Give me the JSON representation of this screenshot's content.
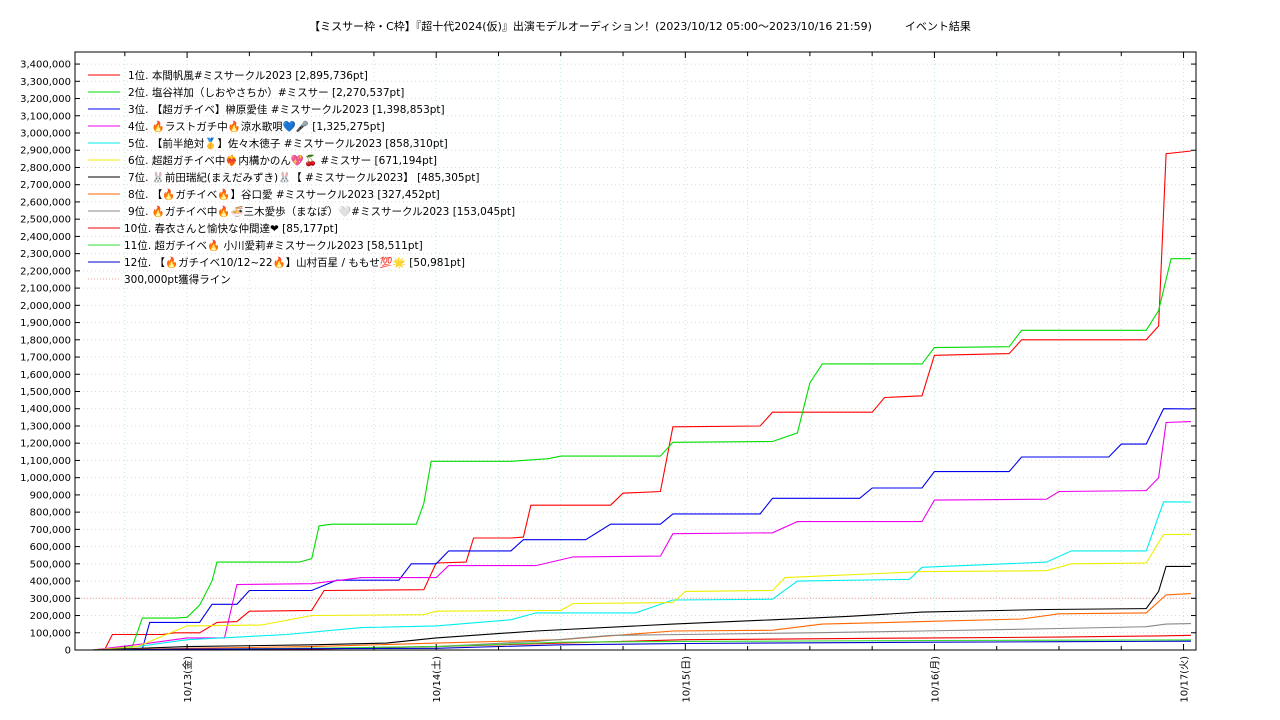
{
  "chart_data": {
    "type": "line",
    "title": "【ミスサー枠・C枠】『超十代2024(仮)』出演モデルオーディション！(2023/10/12 05:00～2023/10/16 21:59)　　　イベント結果",
    "xlabel": "",
    "ylabel": "",
    "x_ticks": [
      "10/13(金)",
      "10/14(土)",
      "10/15(日)",
      "10/16(月)",
      "10/17(火)"
    ],
    "y_ticks": [
      "0",
      "100,000",
      "200,000",
      "300,000",
      "400,000",
      "500,000",
      "600,000",
      "700,000",
      "800,000",
      "900,000",
      "1,000,000",
      "1,100,000",
      "1,200,000",
      "1,300,000",
      "1,400,000",
      "1,500,000",
      "1,600,000",
      "1,700,000",
      "1,800,000",
      "1,900,000",
      "2,000,000",
      "2,100,000",
      "2,200,000",
      "2,300,000",
      "2,400,000",
      "2,500,000",
      "2,600,000",
      "2,700,000",
      "2,800,000",
      "2,900,000",
      "3,000,000",
      "3,100,000",
      "3,200,000",
      "3,300,000",
      "3,400,000"
    ],
    "x_range_days": [
      -0.45,
      4.05
    ],
    "ylim": [
      0,
      3470000
    ],
    "grid": true,
    "legend_position": "top-left",
    "series": [
      {
        "name": "1位. 本間帆風#ミスサークル2023 [2,895,736pt]",
        "color": "#ff0000",
        "points": [
          [
            -0.38,
            0
          ],
          [
            -0.33,
            5000
          ],
          [
            -0.3,
            90000
          ],
          [
            -0.1,
            90000
          ],
          [
            -0.05,
            100000
          ],
          [
            0.05,
            100000
          ],
          [
            0.12,
            160000
          ],
          [
            0.2,
            165000
          ],
          [
            0.25,
            225000
          ],
          [
            0.5,
            230000
          ],
          [
            0.55,
            345000
          ],
          [
            0.95,
            350000
          ],
          [
            1.0,
            505000
          ],
          [
            1.12,
            510000
          ],
          [
            1.15,
            650000
          ],
          [
            1.3,
            650000
          ],
          [
            1.35,
            655000
          ],
          [
            1.38,
            840000
          ],
          [
            1.7,
            840000
          ],
          [
            1.75,
            910000
          ],
          [
            1.9,
            920000
          ],
          [
            1.95,
            1295000
          ],
          [
            2.3,
            1300000
          ],
          [
            2.35,
            1380000
          ],
          [
            2.75,
            1380000
          ],
          [
            2.8,
            1465000
          ],
          [
            2.95,
            1475000
          ],
          [
            3.0,
            1710000
          ],
          [
            3.3,
            1720000
          ],
          [
            3.35,
            1800000
          ],
          [
            3.85,
            1800000
          ],
          [
            3.9,
            1880000
          ],
          [
            3.93,
            2880000
          ],
          [
            4.03,
            2895736
          ]
        ]
      },
      {
        "name": "2位. 塩谷祥加（しおやさちか）#ミスサー [2,270,537pt]",
        "color": "#00dd00",
        "points": [
          [
            -0.38,
            0
          ],
          [
            -0.22,
            20000
          ],
          [
            -0.18,
            185000
          ],
          [
            -0.05,
            185000
          ],
          [
            0.0,
            190000
          ],
          [
            0.05,
            260000
          ],
          [
            0.1,
            400000
          ],
          [
            0.12,
            510000
          ],
          [
            0.45,
            510000
          ],
          [
            0.5,
            530000
          ],
          [
            0.53,
            720000
          ],
          [
            0.58,
            730000
          ],
          [
            0.92,
            730000
          ],
          [
            0.95,
            850000
          ],
          [
            0.98,
            1095000
          ],
          [
            1.3,
            1095000
          ],
          [
            1.45,
            1110000
          ],
          [
            1.5,
            1125000
          ],
          [
            1.9,
            1125000
          ],
          [
            1.95,
            1205000
          ],
          [
            2.35,
            1210000
          ],
          [
            2.45,
            1260000
          ],
          [
            2.5,
            1550000
          ],
          [
            2.55,
            1660000
          ],
          [
            2.95,
            1660000
          ],
          [
            3.0,
            1755000
          ],
          [
            3.3,
            1760000
          ],
          [
            3.35,
            1855000
          ],
          [
            3.85,
            1855000
          ],
          [
            3.9,
            1970000
          ],
          [
            3.95,
            2270537
          ],
          [
            4.03,
            2270537
          ]
        ]
      },
      {
        "name": "3位. 【超ガチイベ】榊原愛佳 #ミスサークル2023 [1,398,853pt]",
        "color": "#0000ee",
        "points": [
          [
            -0.38,
            0
          ],
          [
            -0.18,
            5000
          ],
          [
            -0.15,
            160000
          ],
          [
            0.05,
            160000
          ],
          [
            0.1,
            265000
          ],
          [
            0.2,
            265000
          ],
          [
            0.25,
            345000
          ],
          [
            0.5,
            345000
          ],
          [
            0.6,
            405000
          ],
          [
            0.85,
            405000
          ],
          [
            0.9,
            500000
          ],
          [
            1.0,
            500000
          ],
          [
            1.05,
            575000
          ],
          [
            1.3,
            575000
          ],
          [
            1.35,
            640000
          ],
          [
            1.6,
            640000
          ],
          [
            1.7,
            730000
          ],
          [
            1.9,
            730000
          ],
          [
            1.95,
            790000
          ],
          [
            2.3,
            790000
          ],
          [
            2.35,
            880000
          ],
          [
            2.7,
            880000
          ],
          [
            2.75,
            940000
          ],
          [
            2.95,
            940000
          ],
          [
            3.0,
            1035000
          ],
          [
            3.3,
            1035000
          ],
          [
            3.35,
            1120000
          ],
          [
            3.7,
            1120000
          ],
          [
            3.75,
            1195000
          ],
          [
            3.85,
            1195000
          ],
          [
            3.92,
            1400000
          ],
          [
            4.03,
            1398853
          ]
        ]
      },
      {
        "name": "4位. 🔥ラストガチ中🔥涼水歌唄💙🎤 [1,325,275pt]",
        "color": "#ee00ee",
        "points": [
          [
            -0.38,
            0
          ],
          [
            -0.15,
            40000
          ],
          [
            0.0,
            70000
          ],
          [
            0.15,
            70000
          ],
          [
            0.2,
            380000
          ],
          [
            0.5,
            385000
          ],
          [
            0.7,
            420000
          ],
          [
            1.0,
            420000
          ],
          [
            1.05,
            490000
          ],
          [
            1.4,
            490000
          ],
          [
            1.55,
            540000
          ],
          [
            1.9,
            545000
          ],
          [
            1.95,
            675000
          ],
          [
            2.35,
            680000
          ],
          [
            2.45,
            745000
          ],
          [
            2.95,
            745000
          ],
          [
            3.0,
            870000
          ],
          [
            3.45,
            875000
          ],
          [
            3.5,
            920000
          ],
          [
            3.85,
            925000
          ],
          [
            3.9,
            1000000
          ],
          [
            3.93,
            1320000
          ],
          [
            4.03,
            1325275
          ]
        ]
      },
      {
        "name": "5位. 【前半絶対🥇】佐々木徳子 #ミスサークル2023 [858,310pt]",
        "color": "#00eeee",
        "points": [
          [
            -0.38,
            0
          ],
          [
            -0.25,
            10000
          ],
          [
            0.0,
            60000
          ],
          [
            0.4,
            90000
          ],
          [
            0.7,
            130000
          ],
          [
            1.0,
            140000
          ],
          [
            1.3,
            175000
          ],
          [
            1.4,
            215000
          ],
          [
            1.8,
            215000
          ],
          [
            1.95,
            290000
          ],
          [
            2.35,
            295000
          ],
          [
            2.45,
            400000
          ],
          [
            2.9,
            410000
          ],
          [
            2.95,
            480000
          ],
          [
            3.45,
            510000
          ],
          [
            3.55,
            575000
          ],
          [
            3.85,
            575000
          ],
          [
            3.92,
            860000
          ],
          [
            4.03,
            858310
          ]
        ]
      },
      {
        "name": "6位. 超超ガチイベ中❤️‍🔥内構かのん💖🍒 #ミスサー [671,194pt]",
        "color": "#eeee00",
        "points": [
          [
            -0.38,
            0
          ],
          [
            -0.2,
            20000
          ],
          [
            0.0,
            140000
          ],
          [
            0.3,
            145000
          ],
          [
            0.5,
            200000
          ],
          [
            0.95,
            205000
          ],
          [
            1.0,
            225000
          ],
          [
            1.5,
            230000
          ],
          [
            1.55,
            270000
          ],
          [
            1.95,
            275000
          ],
          [
            2.0,
            340000
          ],
          [
            2.35,
            345000
          ],
          [
            2.4,
            420000
          ],
          [
            2.95,
            455000
          ],
          [
            3.45,
            460000
          ],
          [
            3.55,
            500000
          ],
          [
            3.85,
            505000
          ],
          [
            3.92,
            670000
          ],
          [
            4.03,
            671194
          ]
        ]
      },
      {
        "name": "7位. 🐰前田瑞紀(まえだみずき)🐰【 #ミスサークル2023】 [485,305pt]",
        "color": "#000000",
        "points": [
          [
            -0.38,
            0
          ],
          [
            0.0,
            20000
          ],
          [
            0.5,
            30000
          ],
          [
            0.8,
            40000
          ],
          [
            1.0,
            70000
          ],
          [
            1.4,
            110000
          ],
          [
            1.95,
            150000
          ],
          [
            2.35,
            175000
          ],
          [
            2.65,
            195000
          ],
          [
            2.95,
            220000
          ],
          [
            3.45,
            235000
          ],
          [
            3.85,
            240000
          ],
          [
            3.9,
            340000
          ],
          [
            3.93,
            485000
          ],
          [
            4.03,
            485305
          ]
        ]
      },
      {
        "name": "8位. 【🔥ガチイベ🔥】谷口愛 #ミスサークル2023 [327,452pt]",
        "color": "#ff6600",
        "points": [
          [
            -0.38,
            0
          ],
          [
            0.0,
            10000
          ],
          [
            0.5,
            20000
          ],
          [
            1.0,
            40000
          ],
          [
            1.5,
            60000
          ],
          [
            1.95,
            110000
          ],
          [
            2.35,
            115000
          ],
          [
            2.55,
            150000
          ],
          [
            2.95,
            165000
          ],
          [
            3.35,
            180000
          ],
          [
            3.5,
            210000
          ],
          [
            3.85,
            215000
          ],
          [
            3.93,
            320000
          ],
          [
            4.03,
            327452
          ]
        ]
      },
      {
        "name": "9位. 🔥ガチイベ中🔥🍜三木愛歩（まなぽ）🤍#ミスサークル2023 [153,045pt]",
        "color": "#888888",
        "points": [
          [
            -0.38,
            0
          ],
          [
            0.5,
            10000
          ],
          [
            1.0,
            20000
          ],
          [
            1.4,
            50000
          ],
          [
            1.7,
            85000
          ],
          [
            2.0,
            90000
          ],
          [
            2.5,
            100000
          ],
          [
            2.95,
            110000
          ],
          [
            3.5,
            125000
          ],
          [
            3.85,
            135000
          ],
          [
            3.93,
            150000
          ],
          [
            4.03,
            153045
          ]
        ]
      },
      {
        "name": "10位. 春衣さんと愉快な仲間達❤ [85,177pt]",
        "color": "#ee0000",
        "points": [
          [
            -0.38,
            0
          ],
          [
            0.5,
            5000
          ],
          [
            1.0,
            20000
          ],
          [
            1.5,
            40000
          ],
          [
            2.0,
            60000
          ],
          [
            2.5,
            65000
          ],
          [
            3.0,
            70000
          ],
          [
            3.5,
            75000
          ],
          [
            3.9,
            82000
          ],
          [
            4.03,
            85177
          ]
        ]
      },
      {
        "name": "11位. 超ガチイベ🔥 小川愛莉#ミスサークル2023 [58,511pt]",
        "color": "#33dd33",
        "points": [
          [
            -0.38,
            0
          ],
          [
            0.5,
            10000
          ],
          [
            1.0,
            20000
          ],
          [
            1.5,
            45000
          ],
          [
            2.0,
            50000
          ],
          [
            2.5,
            52000
          ],
          [
            3.0,
            55000
          ],
          [
            3.5,
            57000
          ],
          [
            4.03,
            58511
          ]
        ]
      },
      {
        "name": "12位. 【🔥ガチイベ10/12~22🔥】山村百星 / ももせ💯🌟 [50,981pt]",
        "color": "#0000cc",
        "points": [
          [
            -0.38,
            0
          ],
          [
            0.0,
            5000
          ],
          [
            1.0,
            10000
          ],
          [
            1.5,
            30000
          ],
          [
            2.0,
            38000
          ],
          [
            2.5,
            42000
          ],
          [
            3.0,
            45000
          ],
          [
            3.5,
            48000
          ],
          [
            4.03,
            50981
          ]
        ]
      }
    ],
    "reference_line": {
      "name": "300,000pt獲得ライン",
      "value": 300000,
      "color": "#ff9999",
      "style": "dotted"
    }
  }
}
